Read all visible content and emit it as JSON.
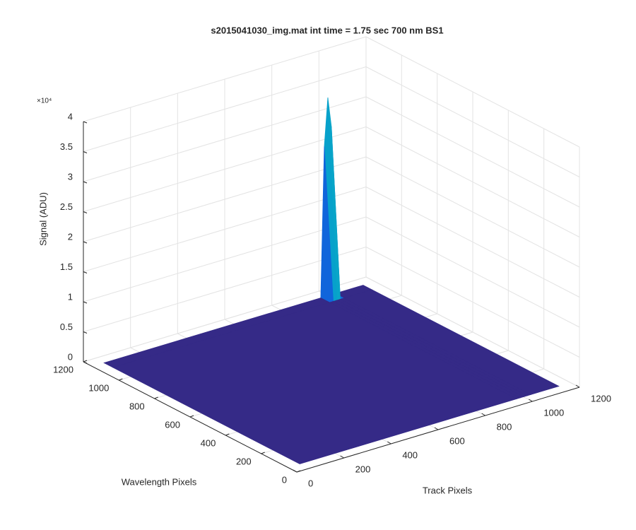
{
  "chart_data": {
    "type": "surface",
    "title": "s2015041030_img.mat int time = 1.75 sec  700 nm BS1",
    "xlabel": "Track Pixels",
    "ylabel": "Wavelength Pixels",
    "zlabel": "Signal (ADU)",
    "zexponent": "×10⁴",
    "x": [
      50,
      970,
      985,
      1000,
      1015,
      1030,
      1150
    ],
    "y": [
      50,
      1100,
      1150
    ],
    "values": [
      [
        0,
        0,
        0,
        0,
        0,
        0,
        0
      ],
      [
        0,
        0,
        0,
        0,
        0,
        0,
        0
      ],
      [
        0,
        0,
        25000,
        33000,
        28000,
        0,
        0
      ]
    ],
    "colormap": "parula",
    "xlim": [
      0,
      1200
    ],
    "xticks": [
      0,
      200,
      400,
      600,
      800,
      1000,
      1200
    ],
    "ylim": [
      0,
      1200
    ],
    "yticks": [
      0,
      200,
      400,
      600,
      800,
      1000,
      1200
    ],
    "zlim": [
      0,
      40000
    ],
    "zticks": [
      0,
      {
        "value": 5000,
        "label": "0.5"
      },
      {
        "value": 10000,
        "label": "1"
      },
      {
        "value": 15000,
        "label": "1.5"
      },
      {
        "value": 20000,
        "label": "2"
      },
      {
        "value": 25000,
        "label": "2.5"
      },
      {
        "value": 30000,
        "label": "3"
      },
      {
        "value": 35000,
        "label": "3.5"
      },
      {
        "value": 40000,
        "label": "4"
      }
    ],
    "grid": true
  }
}
